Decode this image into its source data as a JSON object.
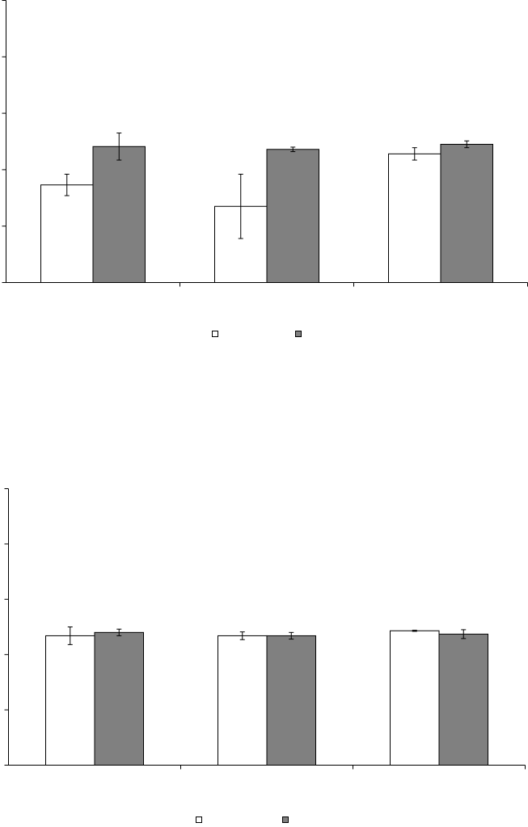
{
  "chart_data": [
    {
      "type": "bar",
      "categories": [
        null,
        null,
        null
      ],
      "ylim": [
        0,
        5
      ],
      "yticks": [
        0,
        1,
        2,
        3,
        4,
        5
      ],
      "grid": false,
      "legend": "bottom",
      "series": [
        {
          "color": "#ffffff",
          "values": [
            1.73,
            1.35,
            2.28
          ],
          "errors": [
            0.19,
            0.57,
            0.11
          ]
        },
        {
          "color": "#808080",
          "values": [
            2.41,
            2.36,
            2.45
          ],
          "errors": [
            0.24,
            0.04,
            0.06
          ]
        }
      ]
    },
    {
      "type": "bar",
      "categories": [
        null,
        null,
        null
      ],
      "ylim": [
        0,
        5
      ],
      "yticks": [
        0,
        1,
        2,
        3,
        4,
        5
      ],
      "grid": false,
      "legend": "bottom",
      "series": [
        {
          "color": "#ffffff",
          "values": [
            2.34,
            2.34,
            2.43
          ],
          "errors": [
            0.16,
            0.07,
            0.01
          ]
        },
        {
          "color": "#808080",
          "values": [
            2.4,
            2.34,
            2.37
          ],
          "errors": [
            0.06,
            0.06,
            0.08
          ]
        }
      ]
    }
  ]
}
